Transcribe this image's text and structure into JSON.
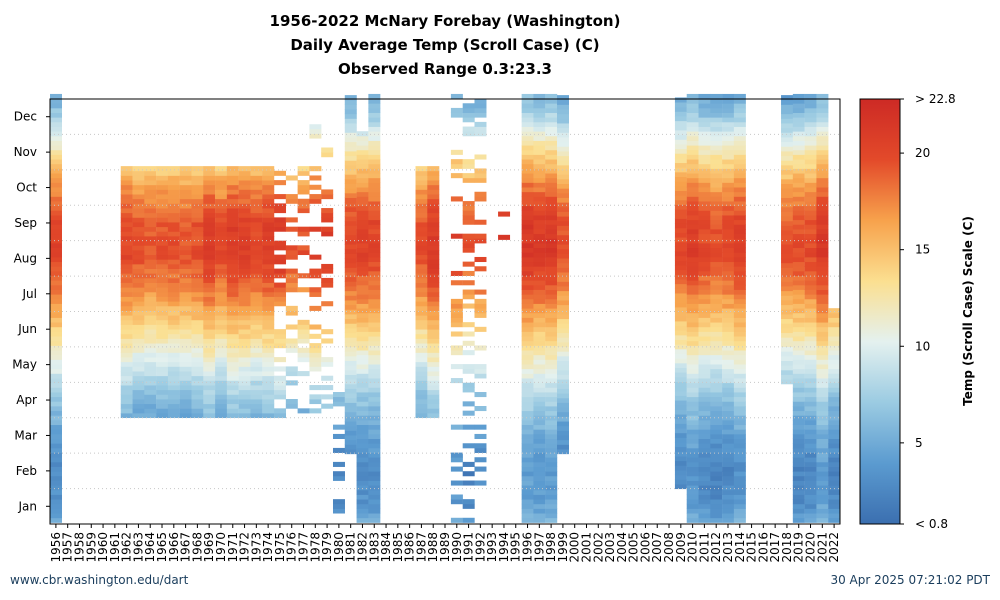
{
  "title_lines": [
    "1956-2022 McNary Forebay (Washington)",
    "Daily Average Temp (Scroll Case) (C)",
    "Observed Range 0.3:23.3"
  ],
  "footer": {
    "left": "www.cbr.washington.edu/dart",
    "right": "30 Apr 2025 07:21:02 PDT"
  },
  "chart_data": {
    "type": "heatmap",
    "x_labels": [
      "1956",
      "1957",
      "1958",
      "1959",
      "1960",
      "1961",
      "1962",
      "1963",
      "1964",
      "1965",
      "1966",
      "1967",
      "1968",
      "1969",
      "1970",
      "1971",
      "1972",
      "1973",
      "1974",
      "1975",
      "1976",
      "1977",
      "1978",
      "1979",
      "1980",
      "1981",
      "1982",
      "1983",
      "1984",
      "1985",
      "1986",
      "1987",
      "1988",
      "1989",
      "1990",
      "1991",
      "1992",
      "1993",
      "1994",
      "1995",
      "1996",
      "1997",
      "1998",
      "1999",
      "2000",
      "2001",
      "2002",
      "2003",
      "2004",
      "2005",
      "2006",
      "2007",
      "2008",
      "2009",
      "2010",
      "2011",
      "2012",
      "2013",
      "2014",
      "2015",
      "2016",
      "2017",
      "2018",
      "2019",
      "2020",
      "2021",
      "2022"
    ],
    "y_labels": [
      "Jan",
      "Feb",
      "Mar",
      "Apr",
      "May",
      "Jun",
      "Jul",
      "Aug",
      "Sep",
      "Oct",
      "Nov",
      "Dec"
    ],
    "colorbar": {
      "label": "Temp (Scroll Case) Scale (C)",
      "tick_labels": [
        "> 22.8",
        "20",
        "15",
        "10",
        "5",
        "< 0.8"
      ],
      "tick_values": [
        22.8,
        20,
        15,
        10,
        5,
        0.8
      ],
      "range": [
        0.8,
        22.8
      ],
      "colors": [
        "#3b6fb0",
        "#5b9bd0",
        "#9bcbe2",
        "#e4f1ef",
        "#fbdf90",
        "#f7a24c",
        "#e34a2a",
        "#cd2a25"
      ]
    },
    "monthly_mean_temp_c": [
      3.5,
      3.0,
      4.5,
      7.0,
      10.5,
      14.5,
      18.0,
      20.5,
      20.0,
      17.0,
      12.5,
      7.0
    ],
    "coverage_days": [
      [
        1,
        365
      ],
      [],
      [],
      [],
      [],
      [],
      [
        91,
        304
      ],
      [
        91,
        304
      ],
      [
        91,
        304
      ],
      [
        91,
        304
      ],
      [
        91,
        304
      ],
      [
        91,
        304
      ],
      [
        91,
        304
      ],
      [
        91,
        304
      ],
      [
        91,
        304
      ],
      [
        91,
        304
      ],
      [
        91,
        304
      ],
      [
        91,
        304
      ],
      [
        91,
        304
      ],
      [
        91,
        304,
        "sparse"
      ],
      [
        91,
        304,
        "sparse"
      ],
      [
        91,
        304,
        "sparse"
      ],
      [
        91,
        350,
        "sparse"
      ],
      [
        91,
        330,
        "sparse"
      ],
      [
        1,
        120,
        "sparse"
      ],
      [
        60,
        365
      ],
      [
        1,
        335
      ],
      [
        1,
        365
      ],
      [],
      [],
      [],
      [
        91,
        304
      ],
      [
        91,
        304
      ],
      [],
      [
        1,
        365,
        "sparse"
      ],
      [
        1,
        365,
        "sparse"
      ],
      [
        1,
        365,
        "sparse"
      ],
      [],
      [
        240,
        265,
        "sparse"
      ],
      [],
      [
        1,
        365
      ],
      [
        1,
        365
      ],
      [
        1,
        365
      ],
      [
        60,
        365
      ],
      [],
      [],
      [],
      [],
      [],
      [],
      [],
      [],
      [],
      [
        30,
        365
      ],
      [
        1,
        365
      ],
      [
        1,
        365
      ],
      [
        1,
        365
      ],
      [
        1,
        365
      ],
      [
        1,
        365
      ],
      [],
      [],
      [],
      [
        120,
        365
      ],
      [
        1,
        365
      ],
      [
        1,
        365
      ],
      [
        1,
        365
      ],
      [
        1,
        181
      ]
    ]
  }
}
